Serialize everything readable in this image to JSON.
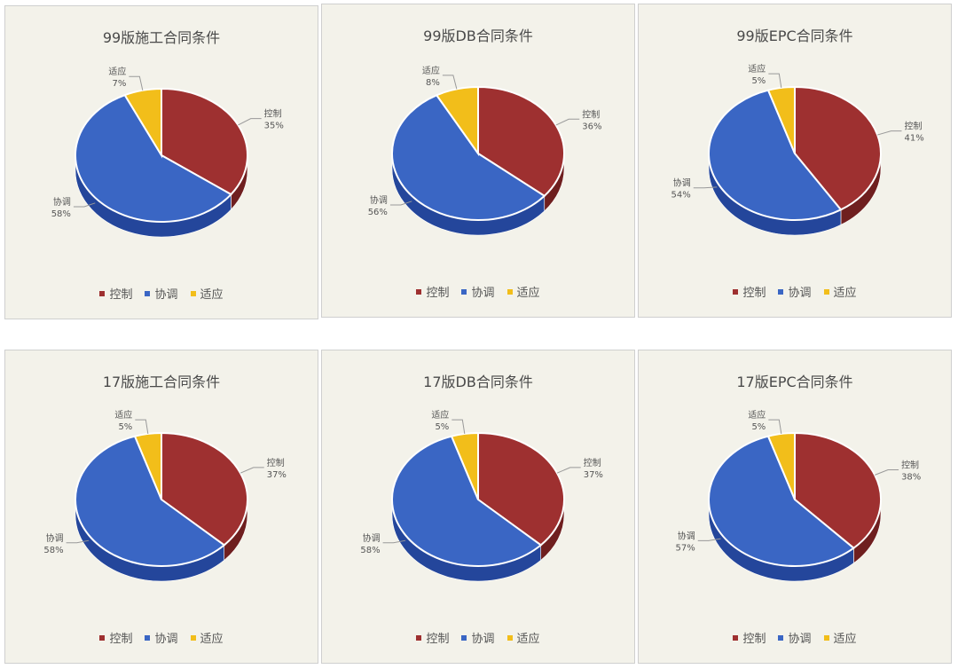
{
  "colors": {
    "控制": "#9e3030",
    "协调": "#3a66c4",
    "适应": "#f2be1a"
  },
  "side_colors": {
    "控制": "#6f1f1f",
    "协调": "#24469b",
    "适应": "#c39510"
  },
  "legend": [
    "控制",
    "协调",
    "适应"
  ],
  "chart_data": [
    {
      "type": "pie",
      "title": "99版施工合同条件",
      "categories": [
        "控制",
        "协调",
        "适应"
      ],
      "values": [
        35,
        58,
        7
      ],
      "labels": [
        "35%",
        "58%",
        "7%"
      ]
    },
    {
      "type": "pie",
      "title": "99版DB合同条件",
      "categories": [
        "控制",
        "协调",
        "适应"
      ],
      "values": [
        36,
        56,
        8
      ],
      "labels": [
        "36%",
        "56%",
        "8%"
      ]
    },
    {
      "type": "pie",
      "title": "99版EPC合同条件",
      "categories": [
        "控制",
        "协调",
        "适应"
      ],
      "values": [
        41,
        54,
        5
      ],
      "labels": [
        "41%",
        "54%",
        "5%"
      ]
    },
    {
      "type": "pie",
      "title": "17版施工合同条件",
      "categories": [
        "控制",
        "协调",
        "适应"
      ],
      "values": [
        37,
        58,
        5
      ],
      "labels": [
        "37%",
        "58%",
        "5%"
      ]
    },
    {
      "type": "pie",
      "title": "17版DB合同条件",
      "categories": [
        "控制",
        "协调",
        "适应"
      ],
      "values": [
        37,
        58,
        5
      ],
      "labels": [
        "37%",
        "58%",
        "5%"
      ]
    },
    {
      "type": "pie",
      "title": "17版EPC合同条件",
      "categories": [
        "控制",
        "协调",
        "适应"
      ],
      "values": [
        38,
        57,
        5
      ],
      "labels": [
        "38%",
        "57%",
        "5%"
      ]
    }
  ]
}
